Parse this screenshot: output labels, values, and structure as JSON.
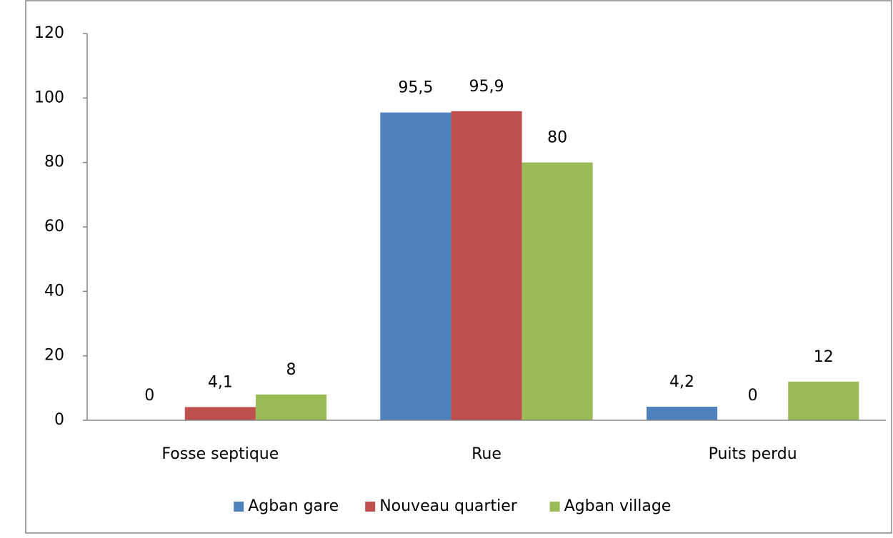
{
  "chart_data": {
    "type": "bar",
    "categories": [
      "Fosse septique",
      "Rue",
      "Puits perdu"
    ],
    "series": [
      {
        "name": "Agban gare",
        "color": "#4f81bd",
        "values": [
          0,
          95.5,
          4.2
        ],
        "value_labels": [
          "0",
          "95,5",
          "4,2"
        ]
      },
      {
        "name": "Nouveau quartier",
        "color": "#c0504d",
        "values": [
          4.1,
          95.9,
          0
        ],
        "value_labels": [
          "4,1",
          "95,9",
          "0"
        ]
      },
      {
        "name": "Agban village",
        "color": "#9bbb59",
        "values": [
          8,
          80,
          12
        ],
        "value_labels": [
          "8",
          "80",
          "12"
        ]
      }
    ],
    "ylim": [
      0,
      120
    ],
    "yticks": [
      0,
      20,
      40,
      60,
      80,
      100,
      120
    ],
    "grid": false,
    "legend": "bottom"
  }
}
